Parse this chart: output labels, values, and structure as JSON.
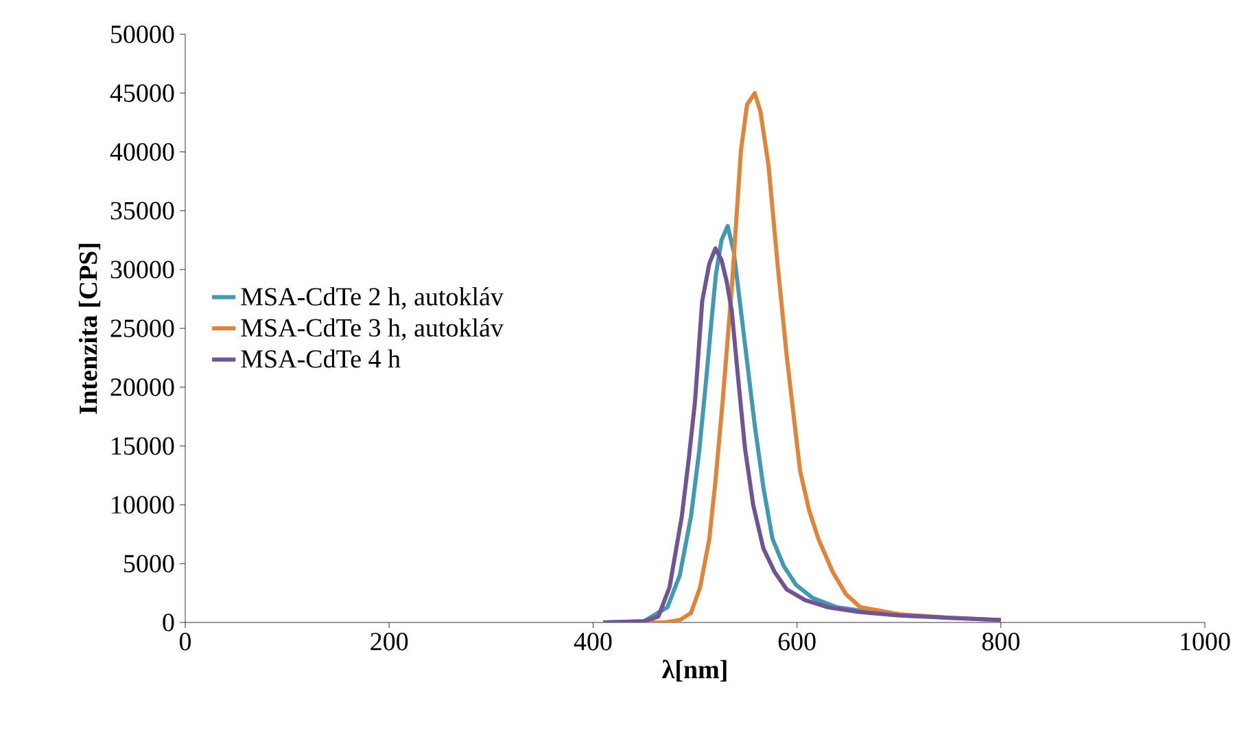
{
  "chart_data": {
    "type": "line",
    "xlabel": "λ[nm]",
    "ylabel": "Intenzita [CPS]",
    "xlim": [
      0,
      1000
    ],
    "xticks": [
      0,
      200,
      400,
      600,
      800,
      1000
    ],
    "ylim": [
      0,
      50000
    ],
    "yticks": [
      0,
      5000,
      10000,
      15000,
      20000,
      25000,
      30000,
      35000,
      40000,
      45000,
      50000
    ],
    "legend": "left",
    "grid": false,
    "marker": "none",
    "line_style": "solid",
    "series": [
      {
        "name": "MSA-CdTe 2 h, autokláv",
        "color": "#4199b2",
        "x": [
          410,
          450,
          473,
          485,
          496,
          504,
          511,
          516,
          520.5,
          526,
          532,
          538,
          545,
          552,
          558.5,
          567,
          576,
          587,
          599,
          615,
          639,
          670,
          700
        ],
        "values": [
          0,
          100,
          1300,
          4000,
          9000,
          14500,
          20700,
          25500,
          29600,
          32500,
          33700,
          31500,
          26500,
          21500,
          16800,
          11500,
          7100,
          4800,
          3200,
          2100,
          1300,
          900,
          700
        ]
      },
      {
        "name": "MSA-CdTe 3 h, autokláv",
        "color": "#e0843a",
        "x": [
          410,
          470,
          485,
          496,
          505,
          514,
          520,
          527,
          536,
          545,
          551,
          558.5,
          564,
          572,
          581,
          590,
          603,
          612,
          621,
          635,
          648,
          662,
          700,
          750,
          800
        ],
        "values": [
          0,
          0,
          200,
          800,
          3000,
          7100,
          12000,
          18700,
          28400,
          40100,
          44000,
          45000,
          43500,
          38900,
          30400,
          22600,
          12900,
          9500,
          7100,
          4300,
          2400,
          1300,
          700,
          400,
          200
        ]
      },
      {
        "name": "MSA-CdTe 4 h",
        "color": "#6f5593",
        "x": [
          410,
          450,
          464,
          475,
          487,
          494,
          500,
          507,
          514,
          520,
          526,
          531,
          536,
          542,
          549,
          557,
          567,
          578,
          590,
          608,
          630,
          660,
          700,
          750,
          800
        ],
        "values": [
          0,
          100,
          500,
          3000,
          9000,
          14000,
          18800,
          27300,
          30500,
          31800,
          30800,
          29000,
          26500,
          21000,
          14800,
          10000,
          6300,
          4300,
          2800,
          1900,
          1300,
          900,
          600,
          400,
          200
        ]
      }
    ]
  }
}
